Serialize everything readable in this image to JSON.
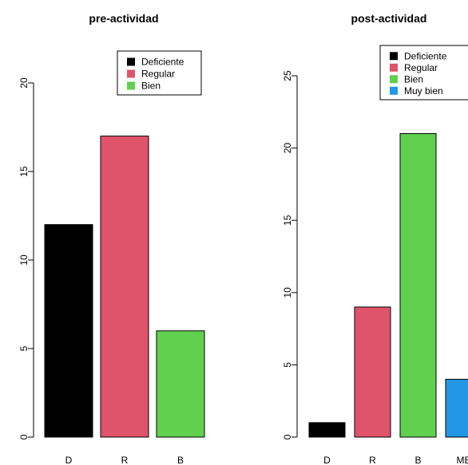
{
  "chart_data": [
    {
      "type": "bar",
      "title": "pre-actividad",
      "categories": [
        "D",
        "R",
        "B"
      ],
      "values": [
        12,
        17,
        6
      ],
      "colors": [
        "#000000",
        "#DF536B",
        "#61D04F"
      ],
      "ylim": [
        0,
        20
      ],
      "yticks": [
        0,
        5,
        10,
        15,
        20
      ],
      "legend": {
        "placement": "top-right",
        "entries": [
          {
            "label": "Deficiente",
            "color": "#000000"
          },
          {
            "label": "Regular",
            "color": "#DF536B"
          },
          {
            "label": "Bien",
            "color": "#61D04F"
          }
        ]
      },
      "grid": false
    },
    {
      "type": "bar",
      "title": "post-actividad",
      "categories": [
        "D",
        "R",
        "B",
        "MB"
      ],
      "values": [
        1,
        9,
        21,
        4
      ],
      "colors": [
        "#000000",
        "#DF536B",
        "#61D04F",
        "#2297E6"
      ],
      "ylim": [
        0,
        25
      ],
      "yticks": [
        0,
        5,
        10,
        15,
        20,
        25
      ],
      "legend": {
        "placement": "top-right",
        "entries": [
          {
            "label": "Deficiente",
            "color": "#000000"
          },
          {
            "label": "Regular",
            "color": "#DF536B"
          },
          {
            "label": "Bien",
            "color": "#61D04F"
          },
          {
            "label": "Muy bien",
            "color": "#2297E6"
          }
        ]
      },
      "grid": false
    }
  ]
}
